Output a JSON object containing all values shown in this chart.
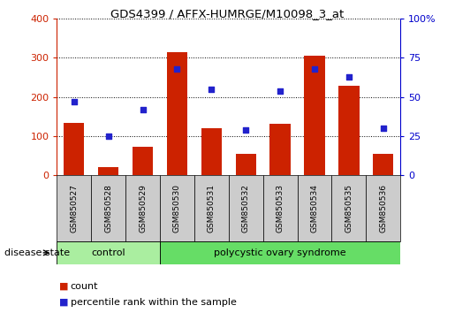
{
  "title": "GDS4399 / AFFX-HUMRGE/M10098_3_at",
  "samples": [
    "GSM850527",
    "GSM850528",
    "GSM850529",
    "GSM850530",
    "GSM850531",
    "GSM850532",
    "GSM850533",
    "GSM850534",
    "GSM850535",
    "GSM850536"
  ],
  "counts": [
    135,
    22,
    72,
    315,
    120,
    55,
    132,
    305,
    228,
    55
  ],
  "percentiles": [
    47,
    25,
    42,
    68,
    55,
    29,
    54,
    68,
    63,
    30
  ],
  "ylim_left": [
    0,
    400
  ],
  "ylim_right": [
    0,
    100
  ],
  "yticks_left": [
    0,
    100,
    200,
    300,
    400
  ],
  "yticks_right": [
    0,
    25,
    50,
    75,
    100
  ],
  "bar_color": "#cc2200",
  "dot_color": "#2222cc",
  "control_color": "#aaeea0",
  "pcos_color": "#66dd66",
  "label_bg_color": "#cccccc",
  "control_label": "control",
  "pcos_label": "polycystic ovary syndrome",
  "disease_state_label": "disease state",
  "legend_count": "count",
  "legend_percentile": "percentile rank within the sample",
  "n_control": 3,
  "n_pcos": 7,
  "right_axis_label_color": "#0000cc",
  "left_axis_label_color": "#cc2200"
}
